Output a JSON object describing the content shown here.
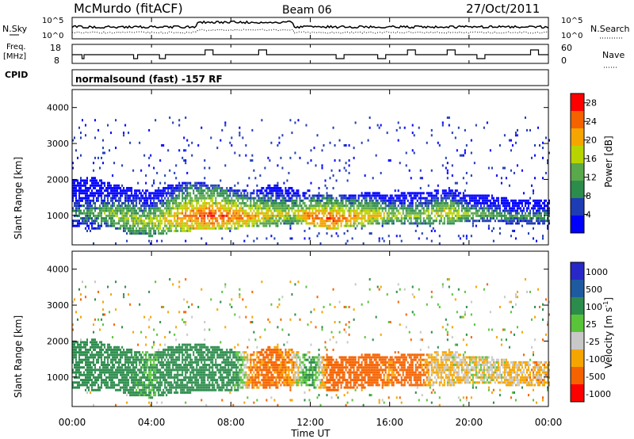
{
  "header": {
    "station": "McMurdo (fitACF)",
    "beam": "Beam 06",
    "date": "27/Oct/2011"
  },
  "panels": {
    "noise": {
      "left_label": "N.Sky",
      "right_label": "N.Search",
      "left_ticks": [
        "10^5",
        "10^0"
      ],
      "right_ticks": [
        "10^5",
        "10^0"
      ]
    },
    "freq": {
      "left_label_1": "Freq.",
      "left_label_2": "[MHz]",
      "left_ticks": [
        "18",
        "8"
      ],
      "right_label": "Nave",
      "right_ticks": [
        "60",
        "0"
      ]
    },
    "cpid": {
      "label": "CPID",
      "text": "normalsound (fast) -157 RF"
    }
  },
  "colors": {
    "power": [
      "#0000ff",
      "#1e3cb4",
      "#2c8c4c",
      "#59a84a",
      "#b8d400",
      "#f5a500",
      "#f56300",
      "#ff0000"
    ],
    "velocity": [
      "#ff0000",
      "#f56300",
      "#f5a500",
      "#c8c8c8",
      "#59c43a",
      "#2c8c4c",
      "#1e5aa0",
      "#2828c8"
    ]
  },
  "chart_data": [
    {
      "type": "heatmap",
      "name": "power",
      "ylabel": "Slant Range [km]",
      "ylim": [
        180,
        4500
      ],
      "yticks": [
        "4000",
        "3000",
        "2000",
        "1000"
      ],
      "xlim": [
        0,
        24
      ],
      "xticks": [
        "00:00",
        "04:00",
        "08:00",
        "12:00",
        "16:00",
        "20:00",
        "00:00"
      ],
      "colorbar": {
        "label": "Power [dB]",
        "ticks": [
          "28",
          "24",
          "20",
          "16",
          "12",
          "8",
          "4"
        ],
        "range": [
          0,
          30
        ]
      },
      "echo_band": {
        "time_h": [
          0,
          1,
          2,
          3,
          4,
          5,
          6,
          7,
          8,
          9,
          10,
          11,
          12,
          13,
          14,
          15,
          16,
          17,
          18,
          19,
          20,
          21,
          22,
          23,
          24
        ],
        "low_km": [
          700,
          650,
          700,
          500,
          450,
          550,
          600,
          650,
          650,
          700,
          700,
          800,
          750,
          650,
          700,
          750,
          800,
          750,
          800,
          800,
          850,
          850,
          800,
          800,
          800
        ],
        "high_km": [
          2000,
          2100,
          1900,
          1800,
          1700,
          1900,
          2000,
          1900,
          1800,
          1700,
          1900,
          1800,
          1600,
          1600,
          1600,
          1700,
          1600,
          1700,
          1700,
          1800,
          1600,
          1600,
          1500,
          1500,
          1500
        ],
        "peak_dB": [
          10,
          12,
          16,
          18,
          18,
          22,
          26,
          28,
          26,
          24,
          20,
          18,
          26,
          28,
          24,
          22,
          18,
          16,
          18,
          20,
          16,
          14,
          12,
          12,
          12
        ]
      }
    },
    {
      "type": "heatmap",
      "name": "velocity",
      "ylabel": "Slant Range [km]",
      "ylim": [
        180,
        4500
      ],
      "yticks": [
        "4000",
        "3000",
        "2000",
        "1000"
      ],
      "xlim": [
        0,
        24
      ],
      "xticks": [
        "00:00",
        "04:00",
        "08:00",
        "12:00",
        "16:00",
        "20:00",
        "00:00"
      ],
      "xlabel": "Time UT",
      "colorbar": {
        "label": "Velocity [m s^-1]",
        "ticks": [
          "1000",
          "500",
          "100",
          "25",
          "-25",
          "-100",
          "-500",
          "-1000"
        ]
      },
      "echo_band": {
        "time_h": [
          0,
          1,
          2,
          3,
          4,
          5,
          6,
          7,
          8,
          9,
          10,
          11,
          12,
          13,
          14,
          15,
          16,
          17,
          18,
          19,
          20,
          21,
          22,
          23,
          24
        ],
        "velocity_ms": [
          200,
          250,
          300,
          150,
          100,
          300,
          300,
          250,
          200,
          -100,
          -150,
          -80,
          150,
          -200,
          -250,
          -200,
          -100,
          -250,
          -50,
          -30,
          -20,
          -10,
          -30,
          -50,
          -60
        ]
      }
    }
  ]
}
